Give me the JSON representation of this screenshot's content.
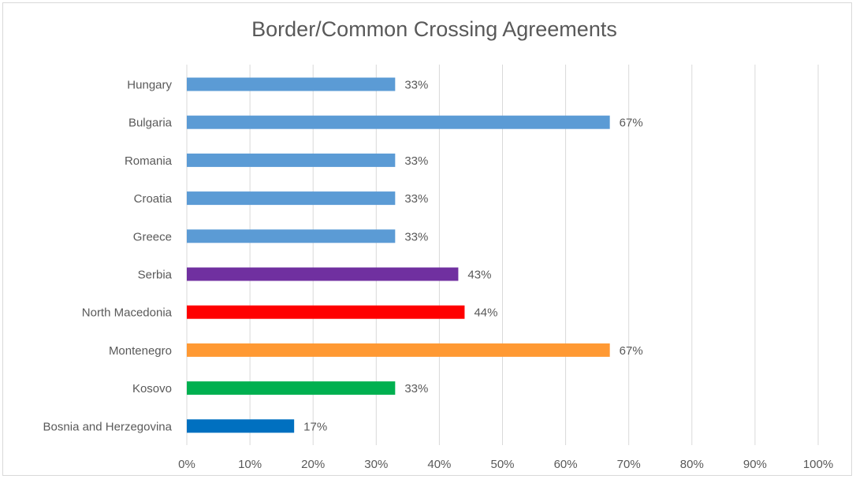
{
  "chart_data": {
    "type": "bar",
    "orientation": "horizontal",
    "title": "Border/Common Crossing Agreements",
    "xlabel": "",
    "ylabel": "",
    "categories": [
      "Hungary",
      "Bulgaria",
      "Romania",
      "Croatia",
      "Greece",
      "Serbia",
      "North Macedonia",
      "Montenegro",
      "Kosovo",
      "Bosnia and Herzegovina"
    ],
    "values": [
      33,
      67,
      33,
      33,
      33,
      43,
      44,
      67,
      33,
      17
    ],
    "data_labels": [
      "33%",
      "67%",
      "33%",
      "33%",
      "33%",
      "43%",
      "44%",
      "67%",
      "33%",
      "17%"
    ],
    "bar_colors": [
      "#5b9bd5",
      "#5b9bd5",
      "#5b9bd5",
      "#5b9bd5",
      "#5b9bd5",
      "#7030a0",
      "#ff0000",
      "#ff9933",
      "#00b050",
      "#0070c0"
    ],
    "xlim": [
      0,
      100
    ],
    "x_ticks": [
      "0%",
      "10%",
      "20%",
      "30%",
      "40%",
      "50%",
      "60%",
      "70%",
      "80%",
      "90%",
      "100%"
    ],
    "grid": true,
    "legend": "none"
  }
}
